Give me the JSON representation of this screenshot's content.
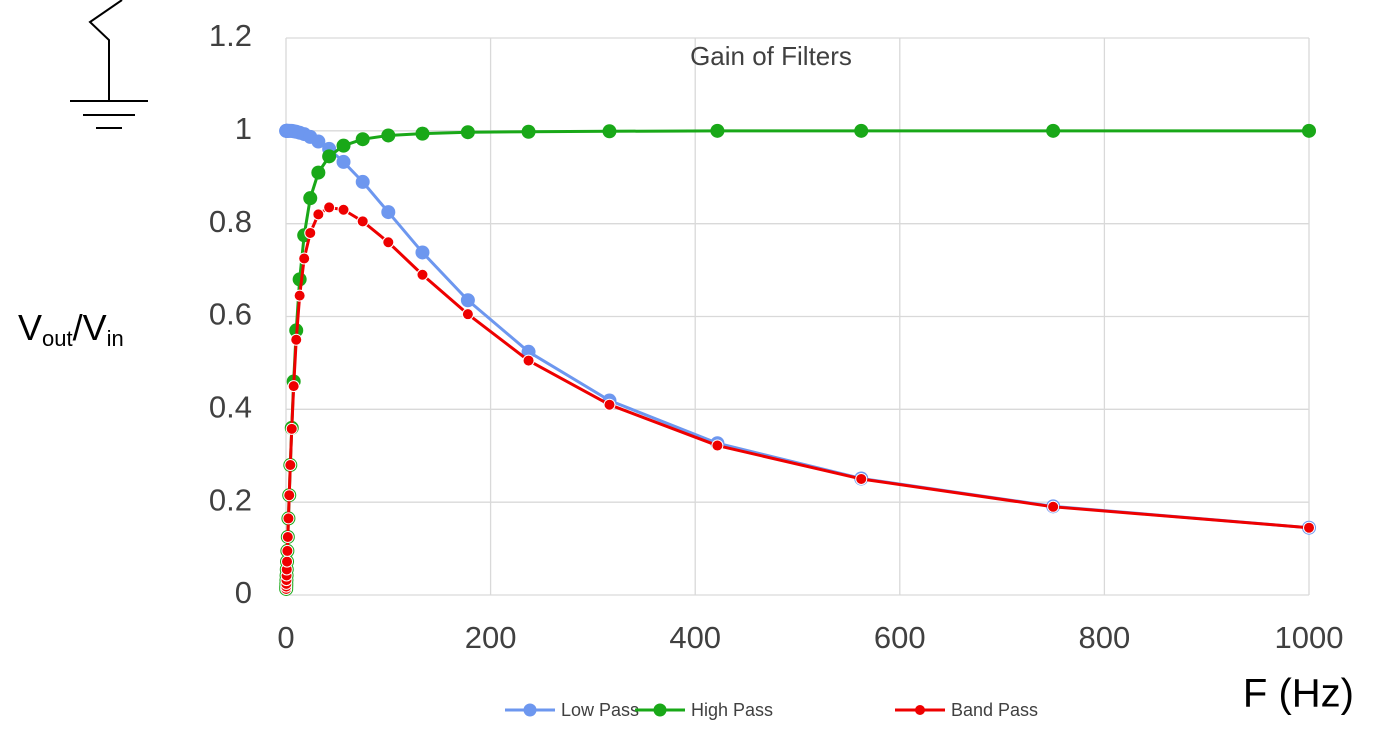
{
  "chart_data": {
    "type": "line",
    "title": "Gain of Filters",
    "y_label": {
      "v1": "V",
      "sub1": "out",
      "v2": "/V",
      "sub2": "in"
    },
    "x_label": "F (Hz)",
    "x": [
      0.178,
      0.237,
      0.316,
      0.422,
      0.562,
      0.75,
      1,
      1.334,
      1.778,
      2.371,
      3.162,
      4.217,
      5.623,
      7.499,
      10,
      13.34,
      17.78,
      23.71,
      31.62,
      42.17,
      56.23,
      74.99,
      100,
      133.4,
      177.8,
      237.1,
      316.2,
      421.7,
      562.3,
      749.9,
      1000
    ],
    "series": [
      {
        "name": "Low Pass",
        "color": "#6d97ef",
        "values": [
          1,
          1,
          1,
          1,
          1,
          1,
          1,
          1,
          1,
          1,
          1,
          1,
          1,
          0.999,
          0.998,
          0.996,
          0.993,
          0.987,
          0.977,
          0.961,
          0.933,
          0.89,
          0.825,
          0.738,
          0.635,
          0.524,
          0.419,
          0.327,
          0.251,
          0.191,
          0.145
        ]
      },
      {
        "name": "High Pass",
        "color": "#19a818",
        "values": [
          0.013,
          0.018,
          0.024,
          0.032,
          0.042,
          0.055,
          0.072,
          0.095,
          0.125,
          0.165,
          0.215,
          0.28,
          0.36,
          0.46,
          0.57,
          0.68,
          0.775,
          0.855,
          0.91,
          0.945,
          0.968,
          0.982,
          0.99,
          0.994,
          0.997,
          0.998,
          0.999,
          1,
          1,
          1,
          1
        ]
      },
      {
        "name": "Band Pass",
        "color": "#ee0000",
        "values": [
          0.013,
          0.018,
          0.024,
          0.032,
          0.042,
          0.055,
          0.072,
          0.095,
          0.125,
          0.165,
          0.215,
          0.28,
          0.358,
          0.45,
          0.55,
          0.645,
          0.725,
          0.78,
          0.82,
          0.835,
          0.83,
          0.805,
          0.76,
          0.69,
          0.605,
          0.505,
          0.41,
          0.322,
          0.25,
          0.19,
          0.145
        ]
      }
    ],
    "xlim": [
      0,
      1000
    ],
    "xticks": [
      0,
      200,
      400,
      600,
      800,
      1000
    ],
    "ylim": [
      0,
      1.2
    ],
    "yticks": [
      0,
      0.2,
      0.4,
      0.6,
      0.8,
      1,
      1.2
    ],
    "grid": true
  }
}
